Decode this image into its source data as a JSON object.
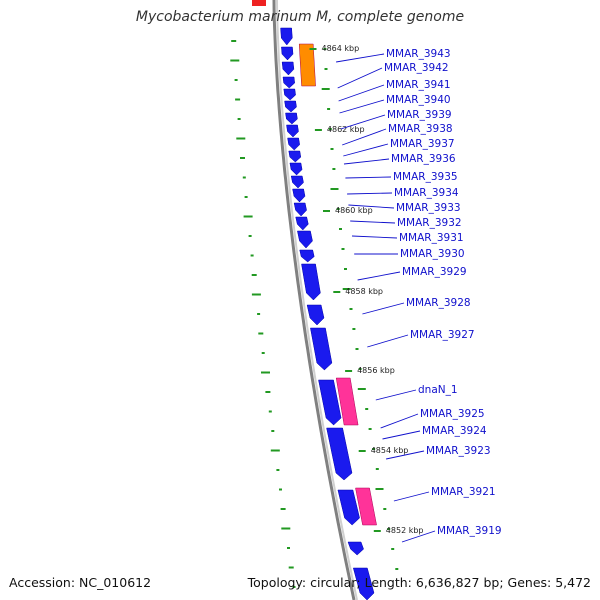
{
  "title": "Mycobacterium marinum M, complete genome",
  "accession_text": "Accession: NC_010612",
  "summary_text": "Topology: circular; Length: 6,636,827 bp; Genes: 5,472",
  "colors": {
    "cds": "#1a1aee",
    "rrna": "#ff8c00",
    "trna": "#ff3399",
    "backbone": "#808080",
    "gc_tick": "#229922",
    "label": "#1010cc"
  },
  "scale_labels": [
    "4864 kbp",
    "4862 kbp",
    "4860 kbp",
    "4858 kbp",
    "4856 kbp",
    "4854 kbp",
    "4852 kbp"
  ],
  "genes": [
    "MMAR_3943",
    "MMAR_3942",
    "MMAR_3941",
    "MMAR_3940",
    "MMAR_3939",
    "MMAR_3938",
    "MMAR_3937",
    "MMAR_3936",
    "MMAR_3935",
    "MMAR_3934",
    "MMAR_3933",
    "MMAR_3932",
    "MMAR_3931",
    "MMAR_3930",
    "MMAR_3929",
    "MMAR_3928",
    "MMAR_3927",
    "dnaN_1",
    "MMAR_3925",
    "MMAR_3924",
    "MMAR_3923",
    "MMAR_3921",
    "MMAR_3919"
  ]
}
